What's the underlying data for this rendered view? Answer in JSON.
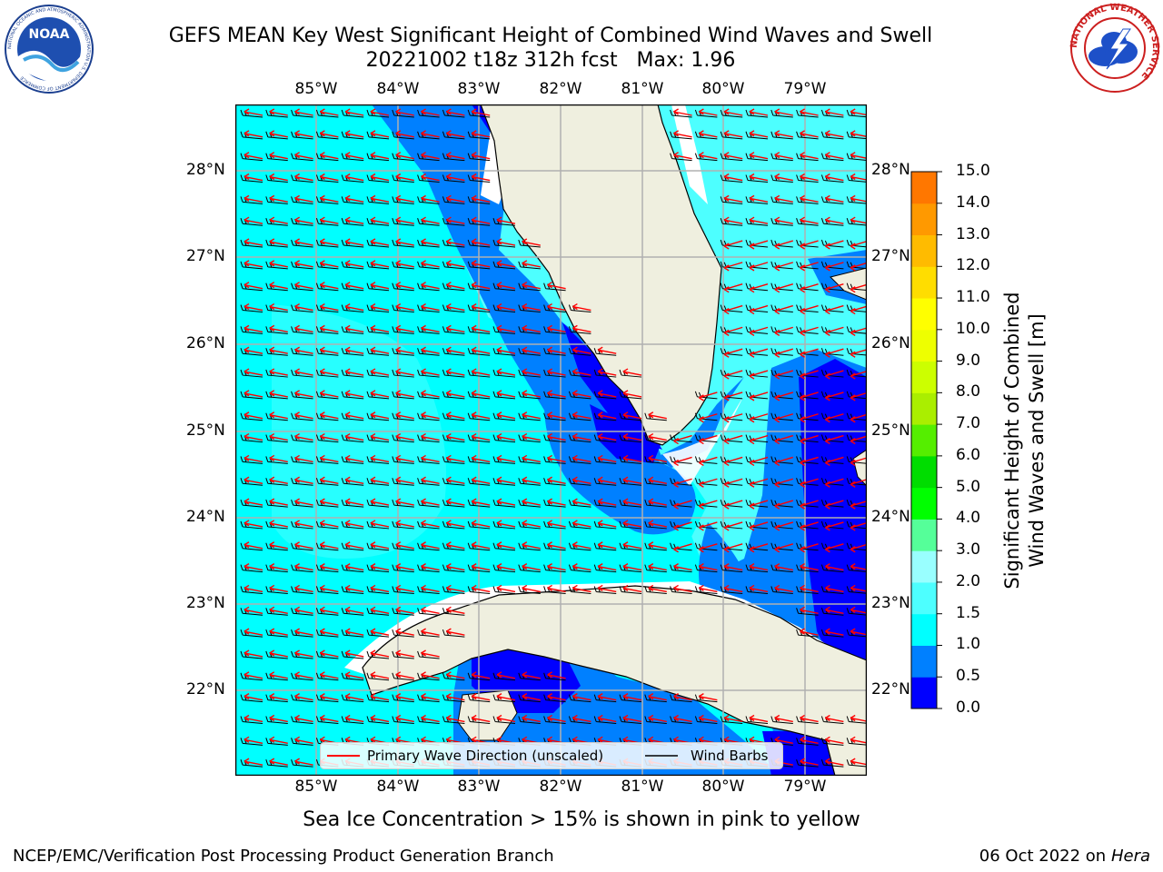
{
  "header": {
    "title_line1": "GEFS MEAN Key West Significant Height of Combined Wind Waves and Swell",
    "title_line2": "20221002 t18z 312h fcst   Max: 1.96"
  },
  "logos": {
    "left_text": "NOAA",
    "left_ring_text": "NATIONAL OCEANIC AND ATMOSPHERIC ADMINISTRATION U.S. DEPARTMENT OF COMMERCE",
    "right_ring_text": "NATIONAL WEATHER SERVICE"
  },
  "map": {
    "lon_labels": [
      "85°W",
      "84°W",
      "83°W",
      "82°W",
      "81°W",
      "80°W",
      "79°W"
    ],
    "lat_labels": [
      "28°N",
      "27°N",
      "26°N",
      "25°N",
      "24°N",
      "23°N",
      "22°N"
    ],
    "legend": {
      "primary_wave": "Primary Wave Direction (unscaled)",
      "wind_barbs": "Wind Barbs"
    },
    "colors": {
      "land": "#efefdf",
      "lt_cyan": "#4dffff",
      "cyan": "#00ffff",
      "blue": "#0080ff",
      "dark_blue": "#0000ff",
      "wave_arrow": "#ff0000",
      "barb": "#000000"
    }
  },
  "colorbar": {
    "title_line1": "Significant Height of Combined",
    "title_line2": "Wind Waves and Swell [m]",
    "ticks": [
      "15.0",
      "14.0",
      "13.0",
      "12.0",
      "11.0",
      "10.0",
      "9.0",
      "8.0",
      "7.0",
      "6.0",
      "5.0",
      "4.0",
      "3.0",
      "2.0",
      "1.5",
      "1.0",
      "0.5",
      "0.0"
    ],
    "colors": [
      "#0000ff",
      "#0080ff",
      "#00ffff",
      "#4dffff",
      "#99ffff",
      "#55ff99",
      "#00ff00",
      "#00dd00",
      "#55ee00",
      "#aaee00",
      "#ccff00",
      "#eeff00",
      "#ffff00",
      "#ffdd00",
      "#ffbb00",
      "#ff9900",
      "#ff7700",
      "#ff4400",
      "#ff0000"
    ]
  },
  "footer": {
    "note": "Sea Ice Concentration > 15% is shown in pink to yellow",
    "credit_left": "NCEP/EMC/Verification Post Processing Product Generation Branch",
    "credit_date": "06 Oct 2022 on ",
    "credit_host": "Hera"
  }
}
